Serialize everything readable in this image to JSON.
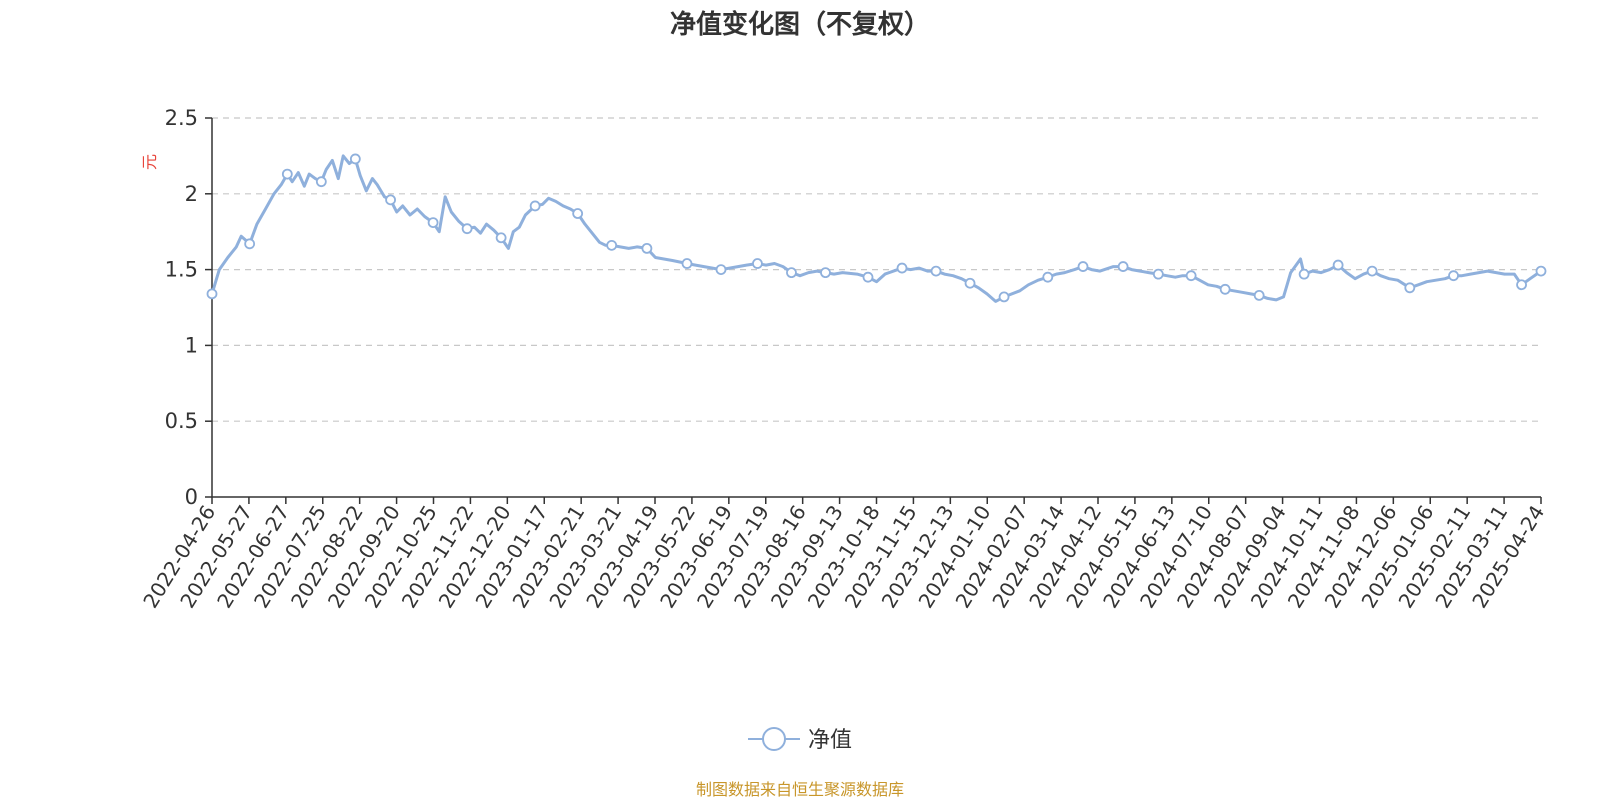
{
  "chart_data": {
    "type": "line",
    "title": "净值变化图（不复权）",
    "ylabel": "元",
    "ylim": [
      0,
      2.5
    ],
    "yticks": [
      0,
      0.5,
      1,
      1.5,
      2,
      2.5
    ],
    "xticks": [
      "2022-04-26",
      "2022-05-27",
      "2022-06-27",
      "2022-07-25",
      "2022-08-22",
      "2022-09-20",
      "2022-10-25",
      "2022-11-22",
      "2022-12-20",
      "2023-01-17",
      "2023-02-21",
      "2023-03-21",
      "2023-04-19",
      "2023-05-22",
      "2023-06-19",
      "2023-07-19",
      "2023-08-16",
      "2023-09-13",
      "2023-10-18",
      "2023-11-15",
      "2023-12-13",
      "2024-01-10",
      "2024-02-07",
      "2024-03-14",
      "2024-04-12",
      "2024-05-15",
      "2024-06-13",
      "2024-07-10",
      "2024-08-07",
      "2024-09-04",
      "2024-10-11",
      "2024-11-08",
      "2024-12-06",
      "2025-01-06",
      "2025-02-11",
      "2025-03-11",
      "2025-04-24"
    ],
    "grid": true,
    "legend_position": "bottom-center",
    "series": [
      {
        "name": "净值",
        "color": "#8fb0dc",
        "points": [
          [
            "2022-04-26",
            1.34
          ],
          [
            "2022-05-02",
            1.5
          ],
          [
            "2022-05-09",
            1.58
          ],
          [
            "2022-05-16",
            1.65
          ],
          [
            "2022-05-20",
            1.72
          ],
          [
            "2022-05-27",
            1.67
          ],
          [
            "2022-06-02",
            1.8
          ],
          [
            "2022-06-09",
            1.9
          ],
          [
            "2022-06-16",
            2.0
          ],
          [
            "2022-06-22",
            2.06
          ],
          [
            "2022-06-27",
            2.13
          ],
          [
            "2022-07-01",
            2.08
          ],
          [
            "2022-07-06",
            2.14
          ],
          [
            "2022-07-11",
            2.05
          ],
          [
            "2022-07-15",
            2.13
          ],
          [
            "2022-07-20",
            2.1
          ],
          [
            "2022-07-25",
            2.08
          ],
          [
            "2022-07-29",
            2.16
          ],
          [
            "2022-08-03",
            2.22
          ],
          [
            "2022-08-08",
            2.1
          ],
          [
            "2022-08-12",
            2.25
          ],
          [
            "2022-08-17",
            2.2
          ],
          [
            "2022-08-22",
            2.23
          ],
          [
            "2022-08-26",
            2.12
          ],
          [
            "2022-08-31",
            2.02
          ],
          [
            "2022-09-05",
            2.1
          ],
          [
            "2022-09-09",
            2.06
          ],
          [
            "2022-09-15",
            1.98
          ],
          [
            "2022-09-20",
            1.96
          ],
          [
            "2022-09-25",
            1.88
          ],
          [
            "2022-09-30",
            1.92
          ],
          [
            "2022-10-06",
            1.86
          ],
          [
            "2022-10-12",
            1.9
          ],
          [
            "2022-10-18",
            1.85
          ],
          [
            "2022-10-25",
            1.81
          ],
          [
            "2022-10-30",
            1.75
          ],
          [
            "2022-11-04",
            1.98
          ],
          [
            "2022-11-09",
            1.88
          ],
          [
            "2022-11-15",
            1.82
          ],
          [
            "2022-11-22",
            1.77
          ],
          [
            "2022-11-28",
            1.78
          ],
          [
            "2022-12-03",
            1.74
          ],
          [
            "2022-12-08",
            1.8
          ],
          [
            "2022-12-14",
            1.76
          ],
          [
            "2022-12-20",
            1.71
          ],
          [
            "2022-12-26",
            1.64
          ],
          [
            "2022-12-30",
            1.75
          ],
          [
            "2023-01-04",
            1.78
          ],
          [
            "2023-01-09",
            1.86
          ],
          [
            "2023-01-17",
            1.92
          ],
          [
            "2023-01-23",
            1.93
          ],
          [
            "2023-01-28",
            1.97
          ],
          [
            "2023-02-03",
            1.95
          ],
          [
            "2023-02-09",
            1.92
          ],
          [
            "2023-02-15",
            1.9
          ],
          [
            "2023-02-21",
            1.87
          ],
          [
            "2023-02-27",
            1.8
          ],
          [
            "2023-03-05",
            1.74
          ],
          [
            "2023-03-11",
            1.68
          ],
          [
            "2023-03-16",
            1.66
          ],
          [
            "2023-03-21",
            1.66
          ],
          [
            "2023-03-28",
            1.65
          ],
          [
            "2023-04-04",
            1.64
          ],
          [
            "2023-04-11",
            1.65
          ],
          [
            "2023-04-19",
            1.64
          ],
          [
            "2023-04-26",
            1.58
          ],
          [
            "2023-05-03",
            1.57
          ],
          [
            "2023-05-10",
            1.56
          ],
          [
            "2023-05-16",
            1.55
          ],
          [
            "2023-05-22",
            1.54
          ],
          [
            "2023-05-29",
            1.53
          ],
          [
            "2023-06-05",
            1.52
          ],
          [
            "2023-06-12",
            1.51
          ],
          [
            "2023-06-19",
            1.5
          ],
          [
            "2023-06-26",
            1.51
          ],
          [
            "2023-07-03",
            1.52
          ],
          [
            "2023-07-10",
            1.53
          ],
          [
            "2023-07-19",
            1.54
          ],
          [
            "2023-07-26",
            1.53
          ],
          [
            "2023-08-02",
            1.54
          ],
          [
            "2023-08-09",
            1.52
          ],
          [
            "2023-08-16",
            1.48
          ],
          [
            "2023-08-23",
            1.46
          ],
          [
            "2023-08-30",
            1.48
          ],
          [
            "2023-09-06",
            1.49
          ],
          [
            "2023-09-13",
            1.48
          ],
          [
            "2023-09-20",
            1.47
          ],
          [
            "2023-09-27",
            1.48
          ],
          [
            "2023-10-09",
            1.47
          ],
          [
            "2023-10-18",
            1.45
          ],
          [
            "2023-10-25",
            1.42
          ],
          [
            "2023-11-01",
            1.47
          ],
          [
            "2023-11-08",
            1.49
          ],
          [
            "2023-11-15",
            1.51
          ],
          [
            "2023-11-22",
            1.5
          ],
          [
            "2023-11-29",
            1.51
          ],
          [
            "2023-12-06",
            1.49
          ],
          [
            "2023-12-13",
            1.49
          ],
          [
            "2023-12-20",
            1.47
          ],
          [
            "2023-12-27",
            1.46
          ],
          [
            "2024-01-03",
            1.44
          ],
          [
            "2024-01-10",
            1.41
          ],
          [
            "2024-01-17",
            1.38
          ],
          [
            "2024-01-24",
            1.34
          ],
          [
            "2024-01-31",
            1.29
          ],
          [
            "2024-02-07",
            1.32
          ],
          [
            "2024-02-20",
            1.36
          ],
          [
            "2024-02-27",
            1.4
          ],
          [
            "2024-03-06",
            1.43
          ],
          [
            "2024-03-14",
            1.45
          ],
          [
            "2024-03-21",
            1.47
          ],
          [
            "2024-03-28",
            1.48
          ],
          [
            "2024-04-05",
            1.5
          ],
          [
            "2024-04-12",
            1.52
          ],
          [
            "2024-04-19",
            1.5
          ],
          [
            "2024-04-26",
            1.49
          ],
          [
            "2024-05-07",
            1.52
          ],
          [
            "2024-05-15",
            1.52
          ],
          [
            "2024-05-22",
            1.5
          ],
          [
            "2024-05-29",
            1.49
          ],
          [
            "2024-06-05",
            1.48
          ],
          [
            "2024-06-13",
            1.47
          ],
          [
            "2024-06-20",
            1.46
          ],
          [
            "2024-06-27",
            1.45
          ],
          [
            "2024-07-03",
            1.46
          ],
          [
            "2024-07-10",
            1.46
          ],
          [
            "2024-07-17",
            1.43
          ],
          [
            "2024-07-24",
            1.4
          ],
          [
            "2024-07-31",
            1.39
          ],
          [
            "2024-08-07",
            1.37
          ],
          [
            "2024-08-14",
            1.36
          ],
          [
            "2024-08-21",
            1.35
          ],
          [
            "2024-08-28",
            1.34
          ],
          [
            "2024-09-04",
            1.33
          ],
          [
            "2024-09-11",
            1.31
          ],
          [
            "2024-09-18",
            1.3
          ],
          [
            "2024-09-24",
            1.32
          ],
          [
            "2024-09-27",
            1.4
          ],
          [
            "2024-09-30",
            1.48
          ],
          [
            "2024-10-08",
            1.57
          ],
          [
            "2024-10-11",
            1.47
          ],
          [
            "2024-10-18",
            1.49
          ],
          [
            "2024-10-25",
            1.48
          ],
          [
            "2024-11-01",
            1.5
          ],
          [
            "2024-11-08",
            1.53
          ],
          [
            "2024-11-15",
            1.48
          ],
          [
            "2024-11-22",
            1.44
          ],
          [
            "2024-11-29",
            1.47
          ],
          [
            "2024-12-06",
            1.49
          ],
          [
            "2024-12-13",
            1.46
          ],
          [
            "2024-12-20",
            1.44
          ],
          [
            "2024-12-27",
            1.43
          ],
          [
            "2025-01-06",
            1.38
          ],
          [
            "2025-01-13",
            1.4
          ],
          [
            "2025-01-20",
            1.42
          ],
          [
            "2025-02-04",
            1.44
          ],
          [
            "2025-02-11",
            1.46
          ],
          [
            "2025-02-18",
            1.46
          ],
          [
            "2025-02-25",
            1.47
          ],
          [
            "2025-03-04",
            1.48
          ],
          [
            "2025-03-11",
            1.49
          ],
          [
            "2025-03-18",
            1.48
          ],
          [
            "2025-03-25",
            1.47
          ],
          [
            "2025-04-02",
            1.47
          ],
          [
            "2025-04-08",
            1.4
          ],
          [
            "2025-04-15",
            1.44
          ],
          [
            "2025-04-24",
            1.49
          ]
        ],
        "markers": [
          "2022-04-26",
          "2022-05-27",
          "2022-06-27",
          "2022-07-25",
          "2022-08-22",
          "2022-09-20",
          "2022-10-25",
          "2022-11-22",
          "2022-12-20",
          "2023-01-17",
          "2023-02-21",
          "2023-03-21",
          "2023-04-19",
          "2023-05-22",
          "2023-06-19",
          "2023-07-19",
          "2023-08-16",
          "2023-09-13",
          "2023-10-18",
          "2023-11-15",
          "2023-12-13",
          "2024-01-10",
          "2024-02-07",
          "2024-03-14",
          "2024-04-12",
          "2024-05-15",
          "2024-06-13",
          "2024-07-10",
          "2024-08-07",
          "2024-09-04",
          "2024-10-11",
          "2024-11-08",
          "2024-12-06",
          "2025-01-06",
          "2025-02-11",
          "2025-04-08",
          "2025-04-24"
        ]
      }
    ]
  },
  "legend": {
    "label": "净值"
  },
  "footer": {
    "source": "制图数据来自恒生聚源数据库"
  }
}
